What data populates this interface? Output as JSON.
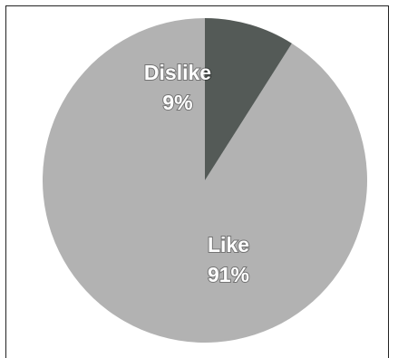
{
  "chart_data": {
    "type": "pie",
    "start_angle_deg": 0,
    "direction": "counterclockwise",
    "slices": [
      {
        "label": "Like",
        "value": 91,
        "percent_text": "91%",
        "color": "#b2b2b2"
      },
      {
        "label": "Dislike",
        "value": 9,
        "percent_text": "9%",
        "color": "#545a57"
      }
    ],
    "legend": "none"
  }
}
